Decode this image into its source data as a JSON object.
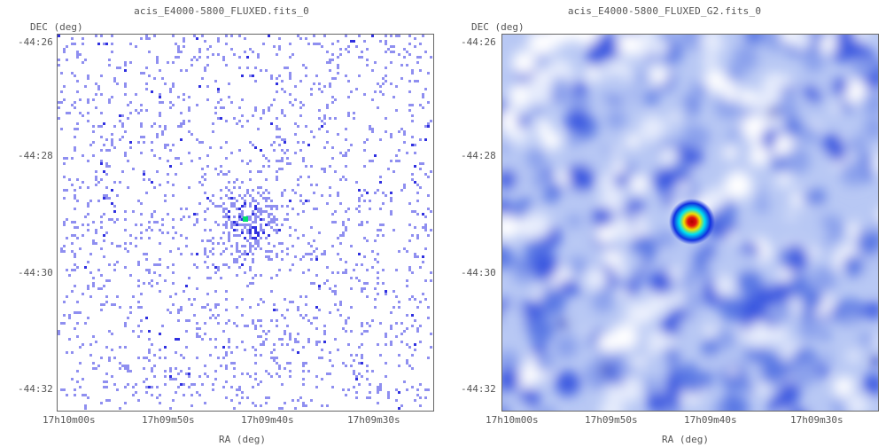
{
  "panels": [
    {
      "title": "acis_E4000-5800_FLUXED.fits_0",
      "ylabel": "DEC (deg)",
      "xlabel": "RA (deg)",
      "y_ticks": [
        "-44:26",
        "-44:28",
        "-44:30",
        "-44:32"
      ],
      "x_ticks": [
        "17h10m00s",
        "17h09m50s",
        "17h09m40s",
        "17h09m30s"
      ],
      "colormap": "sparse blue counts with green/red peak",
      "source_marker": "bright point source near center"
    },
    {
      "title": "acis_E4000-5800_FLUXED_G2.fits_0",
      "ylabel": "DEC (deg)",
      "xlabel": "RA (deg)",
      "y_ticks": [
        "-44:26",
        "-44:28",
        "-44:30",
        "-44:32"
      ],
      "x_ticks": [
        "17h10m00s",
        "17h09m50s",
        "17h09m40s",
        "17h09m30s"
      ],
      "colormap": "smoothed blue/white background with red peak",
      "source_marker": "bright point source near center"
    }
  ],
  "chart_data": [
    {
      "type": "heatmap",
      "title": "acis_E4000-5800_FLUXED.fits_0",
      "xlabel": "RA (deg)",
      "ylabel": "DEC (deg)",
      "x_tick_labels": [
        "17h10m00s",
        "17h09m50s",
        "17h09m40s",
        "17h09m30s"
      ],
      "y_tick_labels": [
        "-44:26",
        "-44:28",
        "-44:30",
        "-44:32"
      ],
      "colors": {
        "background": "#ffffff",
        "low": "#8f8ff0",
        "mid": "#3030e0",
        "high": "#00e070",
        "peak": "#ff2020"
      },
      "source_position": {
        "ra": "17h09m43s",
        "dec": "-44:29:10"
      }
    },
    {
      "type": "heatmap",
      "title": "acis_E4000-5800_FLUXED_G2.fits_0",
      "xlabel": "RA (deg)",
      "ylabel": "DEC (deg)",
      "x_tick_labels": [
        "17h10m00s",
        "17h09m50s",
        "17h09m40s",
        "17h09m30s"
      ],
      "y_tick_labels": [
        "-44:26",
        "-44:28",
        "-44:30",
        "-44:32"
      ],
      "colors": {
        "background": "#ffffff",
        "low": "#b8c8f4",
        "mid": "#3a58e0",
        "high": "#00e0f0",
        "peak": "#e01010"
      },
      "source_position": {
        "ra": "17h09m43s",
        "dec": "-44:29:10"
      }
    }
  ]
}
